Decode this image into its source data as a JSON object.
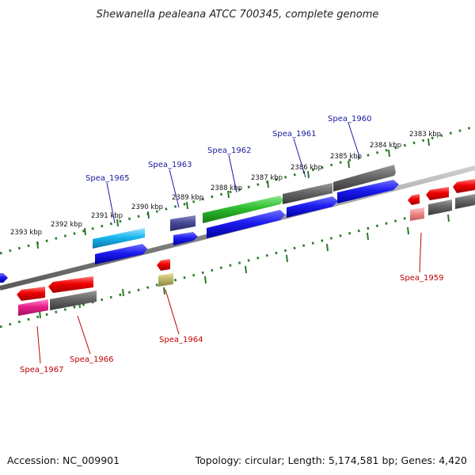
{
  "title": "Shewanella pealeana ATCC 700345, complete genome",
  "footer": {
    "accession": "Accession: NC_009901",
    "topology": "Topology: circular; Length: 5,174,581 bp; Genes: 4,420"
  },
  "scale_labels": [
    "2393 kbp",
    "2392 kbp",
    "2391 kbp",
    "2390 kbp",
    "2389 kbp",
    "2388 kbp",
    "2387 kbp",
    "2386 kbp",
    "2385 kbp",
    "2384 kbp",
    "2383 kbp"
  ],
  "gene_labels": [
    {
      "name": "Spea_1965",
      "strand": "forward"
    },
    {
      "name": "Spea_1963",
      "strand": "forward"
    },
    {
      "name": "Spea_1962",
      "strand": "forward"
    },
    {
      "name": "Spea_1961",
      "strand": "forward"
    },
    {
      "name": "Spea_1960",
      "strand": "forward"
    },
    {
      "name": "Spea_1959",
      "strand": "reverse"
    },
    {
      "name": "Spea_1964",
      "strand": "reverse"
    },
    {
      "name": "Spea_1966",
      "strand": "reverse"
    },
    {
      "name": "Spea_1967",
      "strand": "reverse"
    }
  ],
  "colors": {
    "forward_label": "#1a1aa0",
    "reverse_label": "#c00000",
    "scale_dots": "#2a7a2a",
    "backbone": "#888888"
  }
}
